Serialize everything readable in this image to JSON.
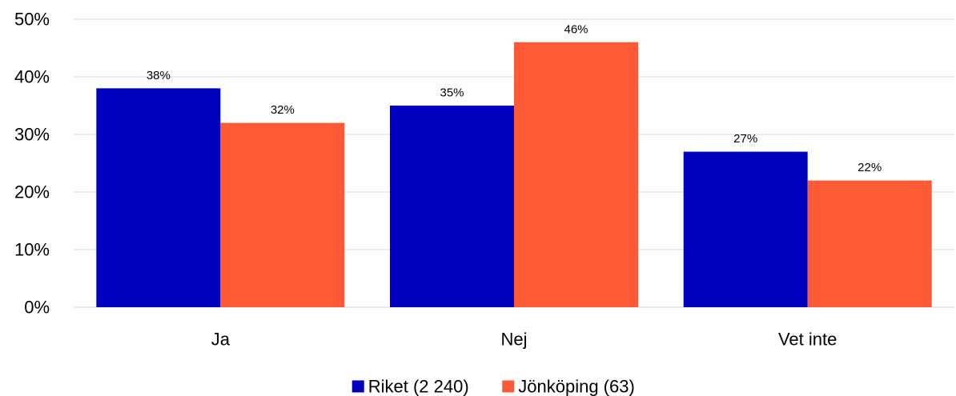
{
  "chart_data": {
    "type": "bar",
    "title": "",
    "xlabel": "",
    "ylabel": "",
    "categories": [
      "Ja",
      "Nej",
      "Vet inte"
    ],
    "series": [
      {
        "name": "Riket (2 240)",
        "color": "#0000c0",
        "values": [
          38,
          35,
          27
        ],
        "labels": [
          "38%",
          "35%",
          "27%"
        ]
      },
      {
        "name": "Jönköping (63)",
        "color": "#ff5a36",
        "values": [
          32,
          46,
          22
        ],
        "labels": [
          "32%",
          "46%",
          "22%"
        ]
      }
    ],
    "ylim": [
      0,
      50
    ],
    "yticks": [
      0,
      10,
      20,
      30,
      40,
      50
    ],
    "ytick_labels": [
      "0%",
      "10%",
      "20%",
      "30%",
      "40%",
      "50%"
    ],
    "grid": true,
    "legend": "bottom-center"
  }
}
